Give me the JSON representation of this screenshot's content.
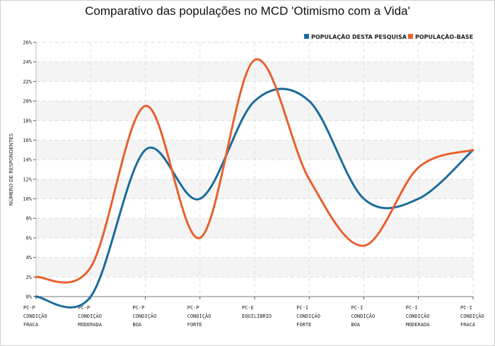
{
  "chart_data": {
    "type": "line",
    "title": "Comparativo das populações no MCD 'Otimismo com a Vida'",
    "ylabel": "NÚMERO DE RESPONDENTES",
    "xlabel": "",
    "ylim": [
      0,
      26
    ],
    "yticks": [
      0,
      2,
      4,
      6,
      8,
      10,
      12,
      14,
      16,
      18,
      20,
      22,
      24,
      26
    ],
    "ytick_suffix": "%",
    "grid": true,
    "legend_position": "top-right",
    "categories": [
      [
        "PC-P",
        "CONDIÇÃO",
        "FRACA"
      ],
      [
        "PC-P",
        "CONDIÇÃO",
        "MODERADA"
      ],
      [
        "PC-P",
        "CONDIÇÃO",
        "BOA"
      ],
      [
        "PC-P",
        "CONDIÇÃO",
        "FORTE"
      ],
      [
        "PC-E",
        "EQUILÍBRIO"
      ],
      [
        "PC-I",
        "CONDIÇÃO",
        "FORTE"
      ],
      [
        "PC-I",
        "CONDIÇÃO",
        "BOA"
      ],
      [
        "PC-I",
        "CONDIÇÃO",
        "MODERADA"
      ],
      [
        "PC-I",
        "CONDIÇÃO",
        "FRACA"
      ]
    ],
    "series": [
      {
        "name": "POPULAÇÃO DESTA PESQUISA",
        "color": "#1a6b9b",
        "values": [
          0,
          0,
          15,
          10,
          20,
          20,
          10,
          10,
          15
        ]
      },
      {
        "name": "POPULAÇÃO-BASE",
        "color": "#e8602c",
        "values": [
          2,
          3,
          19.5,
          6,
          24.2,
          12,
          5.2,
          13.2,
          15
        ]
      }
    ]
  }
}
